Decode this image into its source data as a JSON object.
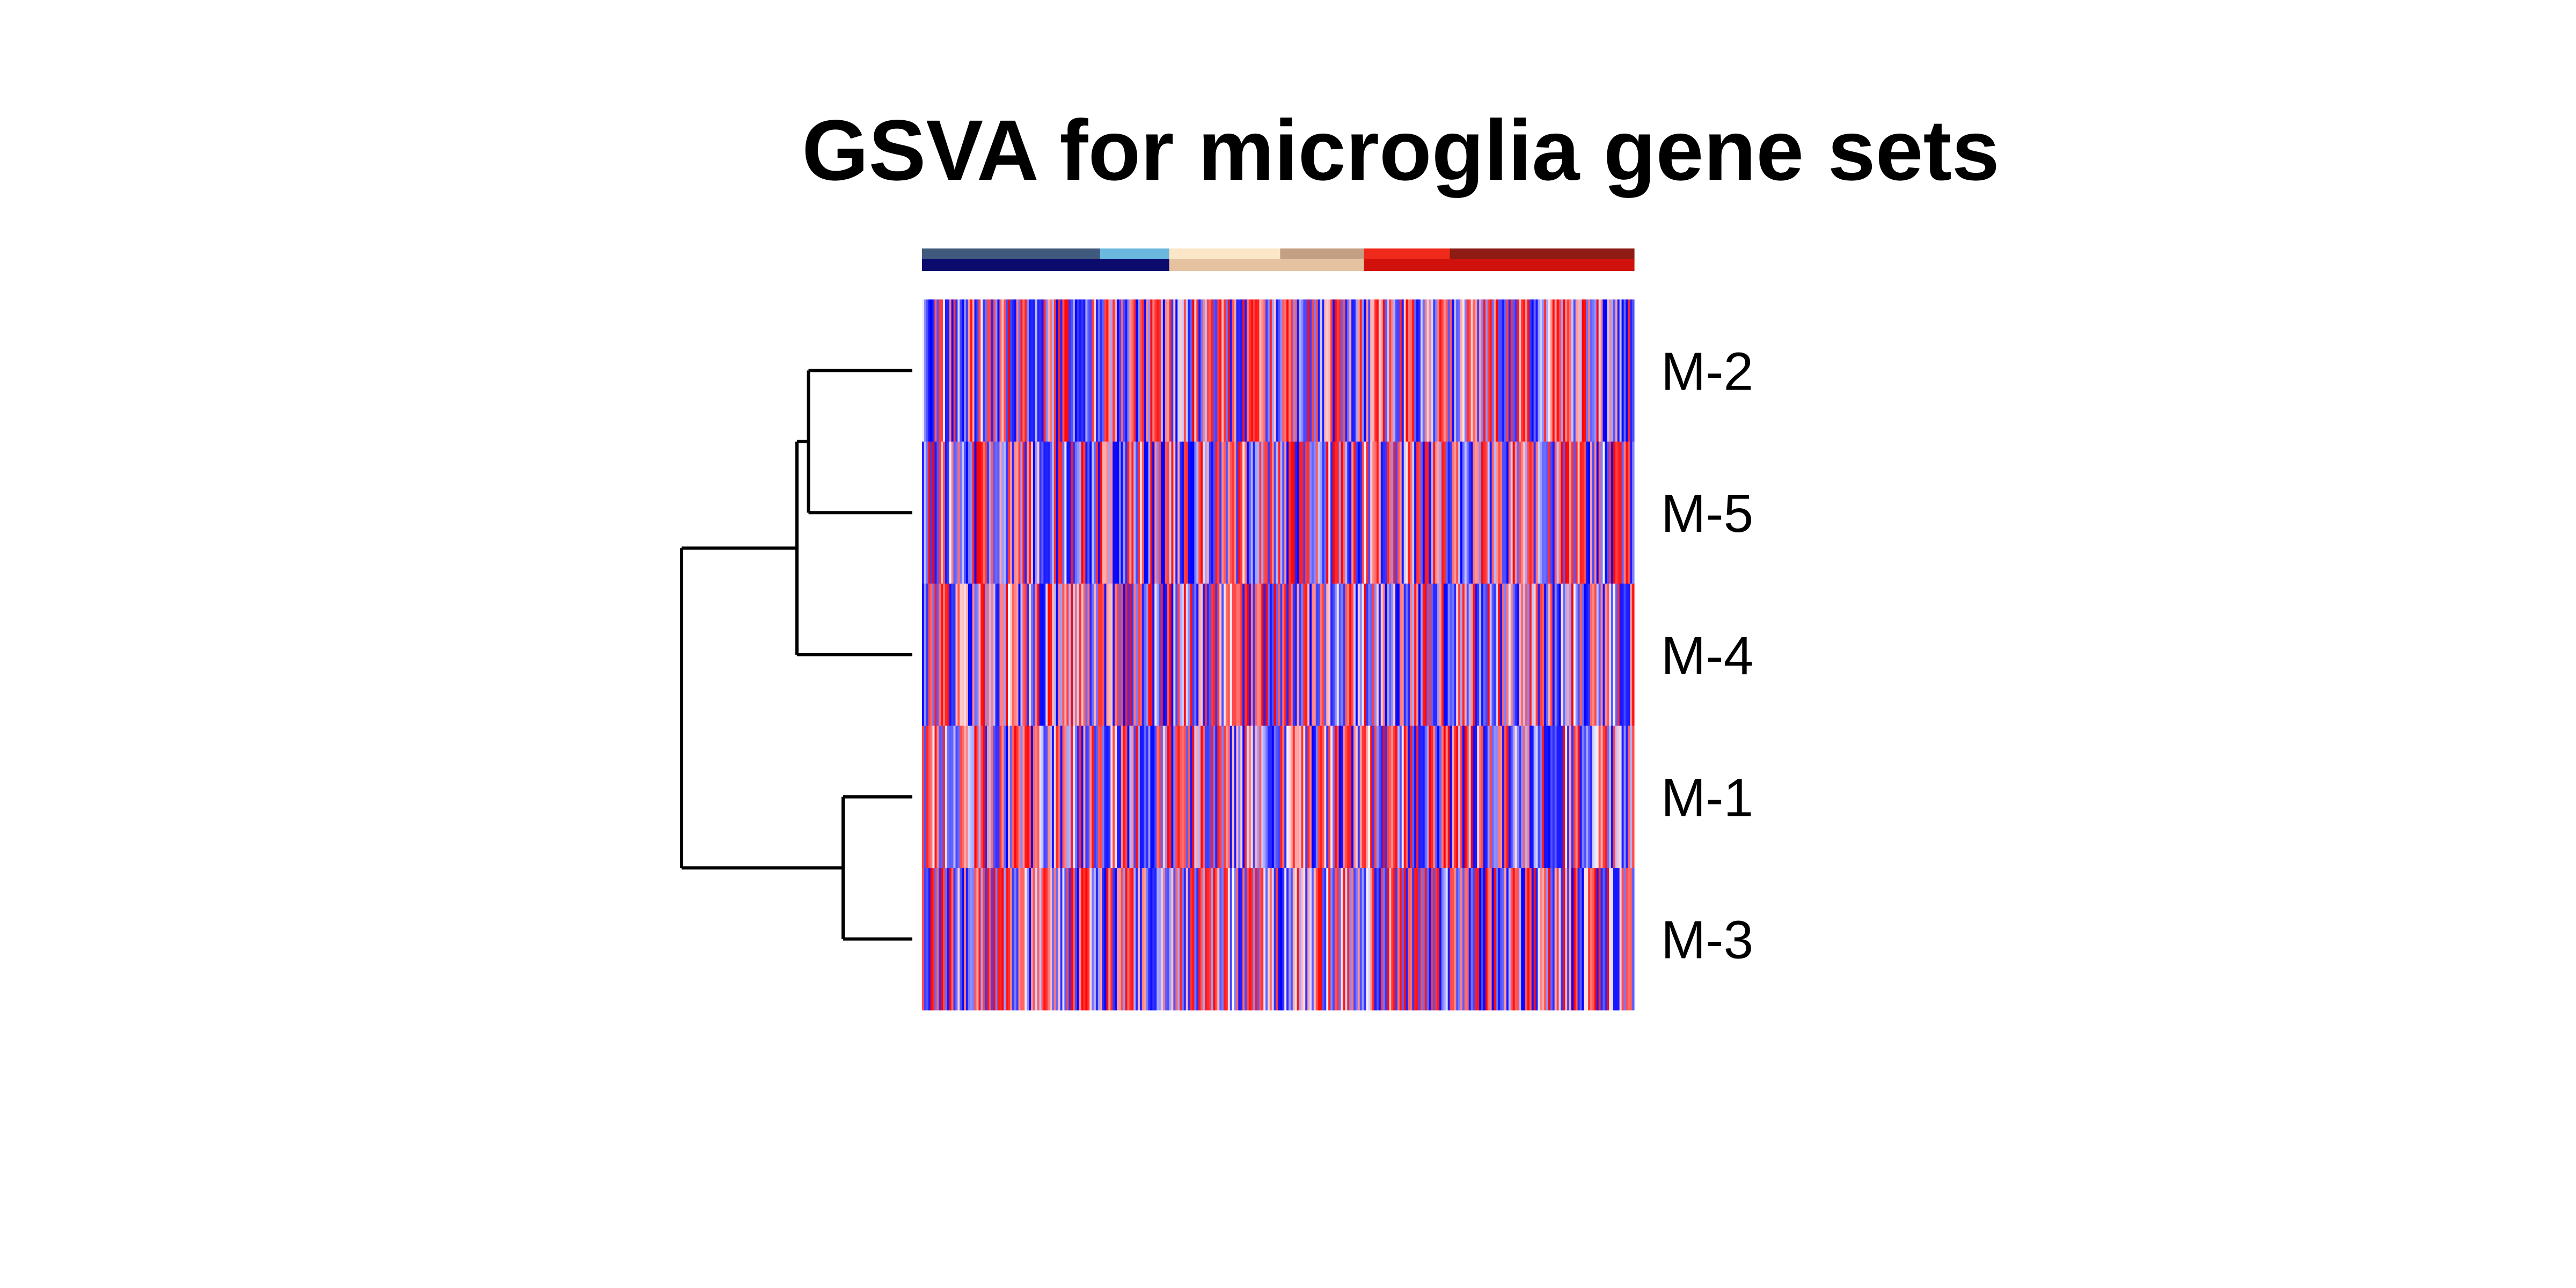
{
  "chart_data": {
    "type": "heatmap",
    "title": "GSVA for microglia gene sets",
    "rows": [
      "M-2",
      "M-5",
      "M-4",
      "M-1",
      "M-3"
    ],
    "n_columns": 340,
    "random_seed": 20240517,
    "color_scale": {
      "low": "#0000FF",
      "mid": "#FFFFFF",
      "high": "#FF0000",
      "range": [
        -1,
        1
      ]
    },
    "column_annotation": {
      "tracks": [
        {
          "name": "top",
          "groups": [
            {
              "color": "#3F5A7C",
              "count": 85
            },
            {
              "color": "#6BB8DF",
              "count": 33
            },
            {
              "color": "#FBE6C7",
              "count": 53
            },
            {
              "color": "#C3A084",
              "count": 40
            },
            {
              "color": "#F02A1A",
              "count": 41
            },
            {
              "color": "#8E1B14",
              "count": 88
            }
          ]
        },
        {
          "name": "bottom",
          "groups": [
            {
              "color": "#0B0B6E",
              "count": 118
            },
            {
              "color": "#E6C2A1",
              "count": 93
            },
            {
              "color": "#D1120C",
              "count": 129
            }
          ]
        }
      ]
    },
    "row_dendrogram": {
      "merges": [
        {
          "left": "M-2",
          "right": "M-5",
          "height": 0.45
        },
        {
          "left": "M-1",
          "right": "M-3",
          "height": 0.3
        },
        {
          "left": "M-2/M-5",
          "right": "M-4",
          "height": 0.5
        },
        {
          "left": "M-2/M-5/M-4",
          "right": "M-1/M-3",
          "height": 1.0
        }
      ]
    },
    "grid": false,
    "legend": "none"
  }
}
